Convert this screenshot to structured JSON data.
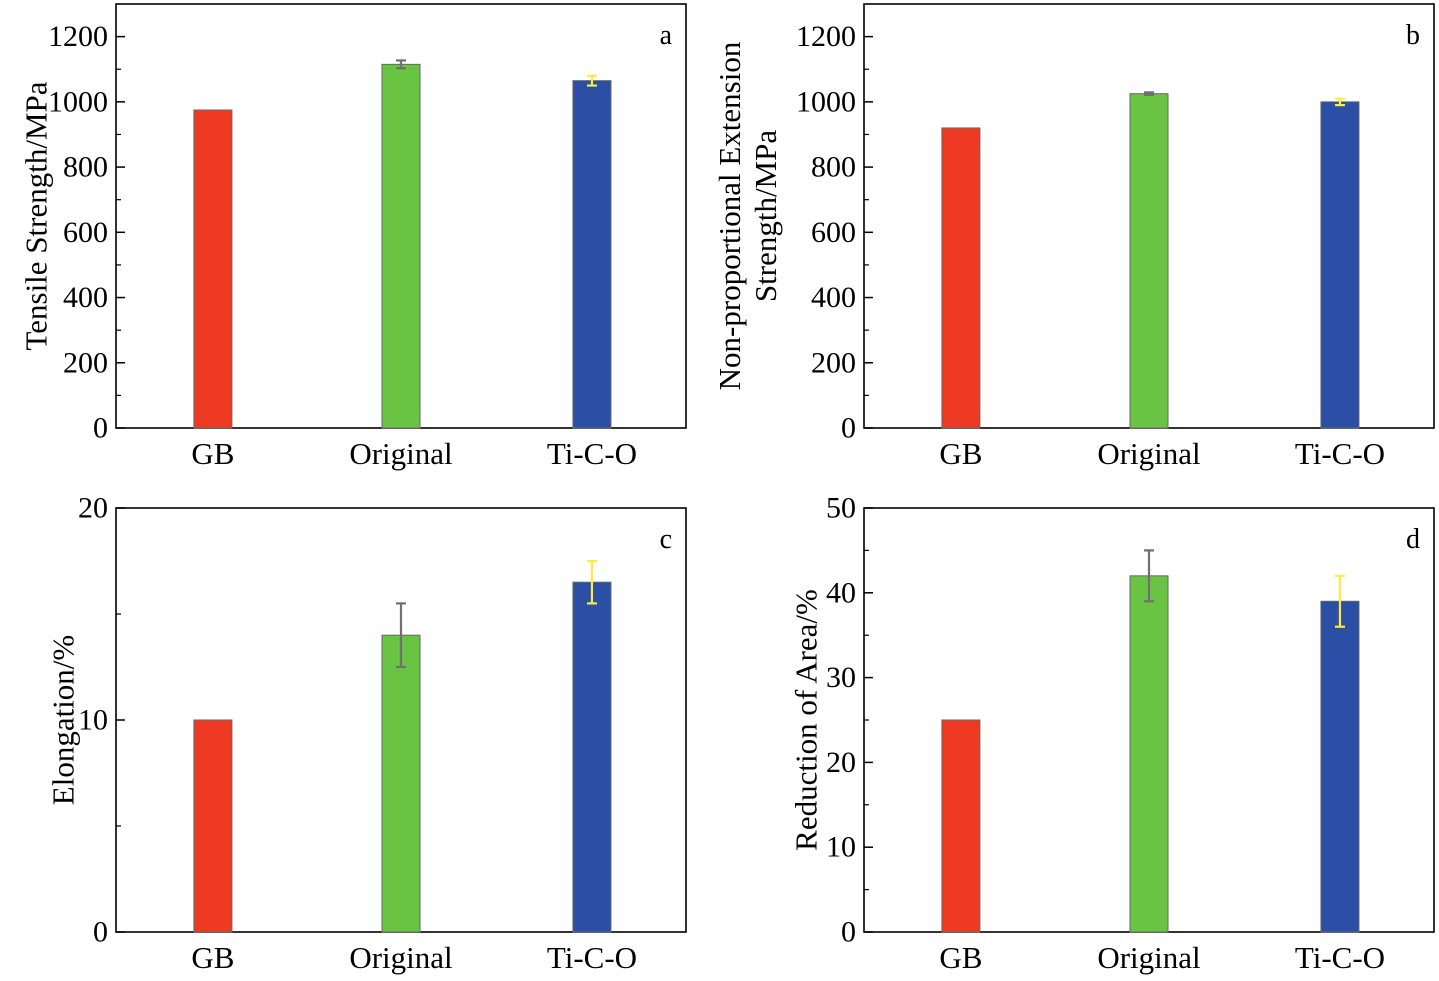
{
  "colors": {
    "GB": "#ee3a22",
    "Original": "#69c443",
    "Ti-C-O": "#2a4fa4",
    "error_original": "#707070",
    "error_tico": "#ffeb3b"
  },
  "chart_data": [
    {
      "type": "bar",
      "panel": "a",
      "categories": [
        "GB",
        "Original",
        "Ti-C-O"
      ],
      "values": [
        975,
        1115,
        1065
      ],
      "errors": [
        0,
        12,
        15
      ],
      "ylabel": "Tensile Strength/MPa",
      "xlabel": "",
      "ylim": [
        0,
        1300
      ],
      "yticks": [
        0,
        200,
        400,
        600,
        800,
        1000,
        1200
      ],
      "yticks_minor": [
        100,
        300,
        500,
        700,
        900,
        1100
      ]
    },
    {
      "type": "bar",
      "panel": "b",
      "categories": [
        "GB",
        "Original",
        "Ti-C-O"
      ],
      "values": [
        920,
        1025,
        1000
      ],
      "errors": [
        0,
        4,
        10
      ],
      "ylabel": "Non-proportional Extension\nStrength/MPa",
      "xlabel": "",
      "ylim": [
        0,
        1300
      ],
      "yticks": [
        0,
        200,
        400,
        600,
        800,
        1000,
        1200
      ],
      "yticks_minor": [
        100,
        300,
        500,
        700,
        900,
        1100
      ]
    },
    {
      "type": "bar",
      "panel": "c",
      "categories": [
        "GB",
        "Original",
        "Ti-C-O"
      ],
      "values": [
        10,
        14,
        16.5
      ],
      "errors": [
        0,
        1.5,
        1
      ],
      "ylabel": "Elongation/%",
      "xlabel": "",
      "ylim": [
        0,
        20
      ],
      "yticks": [
        0,
        10,
        20
      ],
      "yticks_minor": [
        5,
        15
      ]
    },
    {
      "type": "bar",
      "panel": "d",
      "categories": [
        "GB",
        "Original",
        "Ti-C-O"
      ],
      "values": [
        25,
        42,
        39
      ],
      "errors": [
        0,
        3,
        3
      ],
      "ylabel": "Reduction of Area/%",
      "xlabel": "",
      "ylim": [
        0,
        50
      ],
      "yticks": [
        0,
        10,
        20,
        30,
        40,
        50
      ],
      "yticks_minor": [
        5,
        15,
        25,
        35,
        45
      ]
    }
  ]
}
